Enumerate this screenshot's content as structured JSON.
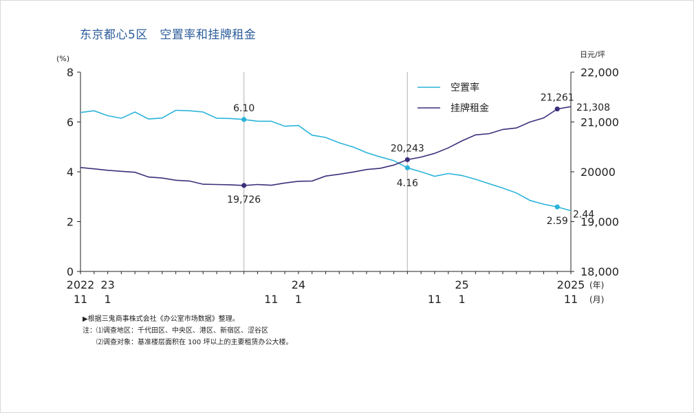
{
  "title": "东京都心5区　空置率和挂牌租金",
  "chart_data": {
    "type": "line",
    "left_axis": {
      "unit": "(%)",
      "min": 0,
      "max": 8,
      "ticks": [
        "0",
        "2",
        "4",
        "6",
        "8"
      ]
    },
    "right_axis": {
      "unit": "日元/坪",
      "min": 18000,
      "max": 22000,
      "ticks": [
        "18,000",
        "19,000",
        "20000",
        "21,000",
        "22,000"
      ]
    },
    "x_axis": {
      "year_suffix": "(年)",
      "month_suffix": "(月)",
      "labels": [
        {
          "index": 0,
          "year": "2022",
          "month": "11"
        },
        {
          "index": 2,
          "year": "23",
          "month": "1"
        },
        {
          "index": 14,
          "year": "",
          "month": "11"
        },
        {
          "index": 14,
          "year": "24",
          "month": "1",
          "offset": 2
        },
        {
          "index": 26,
          "year": "",
          "month": "11"
        },
        {
          "index": 28,
          "year": "25",
          "month": "1"
        },
        {
          "index": 36,
          "year": "2025",
          "month": "11"
        }
      ]
    },
    "series": [
      {
        "name": "空置率",
        "color": "#2ab3d9",
        "axis": "left",
        "values": [
          6.38,
          6.45,
          6.25,
          6.15,
          6.4,
          6.12,
          6.16,
          6.47,
          6.45,
          6.4,
          6.15,
          6.14,
          6.1,
          6.03,
          6.03,
          5.83,
          5.86,
          5.47,
          5.38,
          5.16,
          5.0,
          4.77,
          4.6,
          4.45,
          4.16,
          4.0,
          3.82,
          3.93,
          3.85,
          3.7,
          3.52,
          3.35,
          3.15,
          2.85,
          2.7,
          2.59,
          2.44
        ]
      },
      {
        "name": "挂牌租金",
        "color": "#3a2f7a",
        "axis": "right",
        "values": [
          20085,
          20060,
          20030,
          20010,
          19990,
          19895,
          19875,
          19830,
          19815,
          19750,
          19745,
          19740,
          19726,
          19745,
          19730,
          19775,
          19810,
          19815,
          19915,
          19950,
          19995,
          20045,
          20070,
          20135,
          20243,
          20295,
          20370,
          20480,
          20620,
          20740,
          20765,
          20850,
          20880,
          21000,
          21080,
          21261,
          21308
        ]
      }
    ],
    "annotations": [
      {
        "index": 12,
        "series": 0,
        "text": "6.10"
      },
      {
        "index": 12,
        "series": 1,
        "text": "19,726"
      },
      {
        "index": 24,
        "series": 0,
        "text": "4.16"
      },
      {
        "index": 24,
        "series": 1,
        "text": "20,243"
      },
      {
        "index": 35,
        "series": 0,
        "text": "2.59"
      },
      {
        "index": 35,
        "series": 1,
        "text": "21,261"
      },
      {
        "index": 36,
        "series": 0,
        "text": "2.44"
      },
      {
        "index": 36,
        "series": 1,
        "text": "21,308"
      }
    ],
    "markers": [
      12,
      24,
      35
    ],
    "vlines": [
      12,
      24
    ]
  },
  "notes": {
    "source": "▶根据三鬼商事株式会社《办公室市场数据》整理。",
    "note1": "注：⑴调查地区：千代田区、中央区、港区、新宿区、涩谷区",
    "note2": "　　⑵调查对象：基准楼层面积在 100 坪以上的主要租赁办公大楼。"
  }
}
